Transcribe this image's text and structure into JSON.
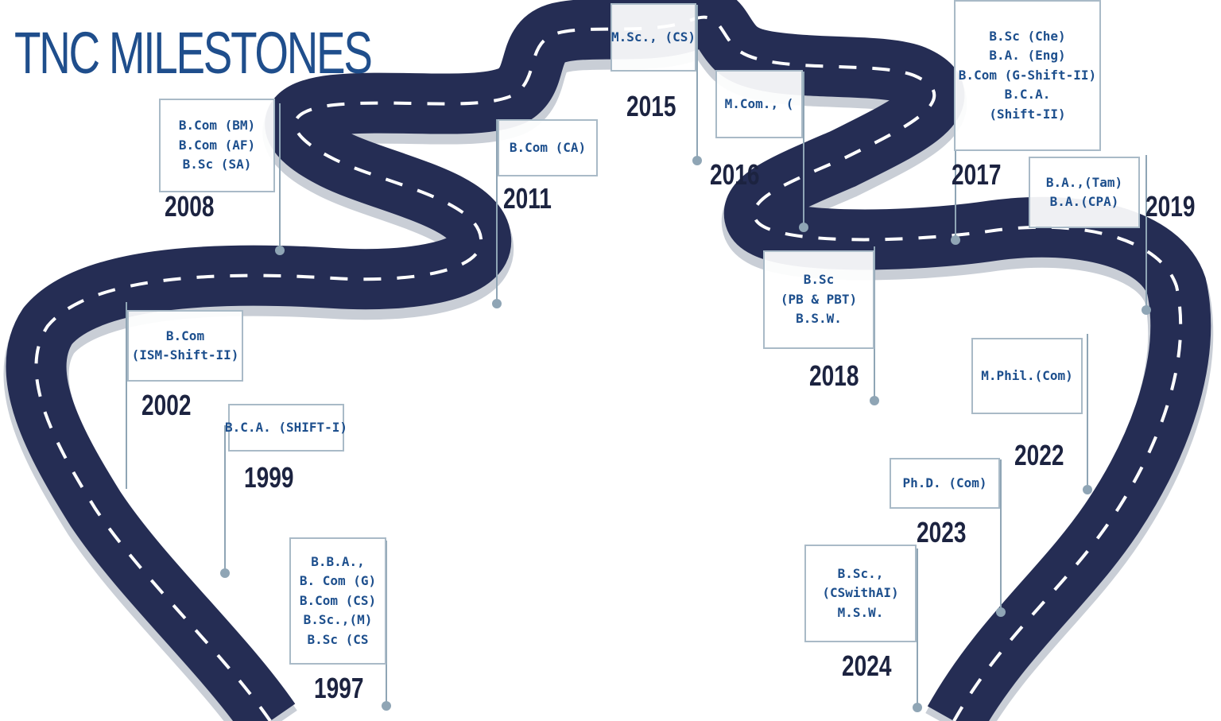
{
  "title": "TNC MILESTONES",
  "colors": {
    "road": "#252d54",
    "road_edge": "#d3d7de",
    "pole": "#8fa5b5",
    "box_text": "#1d4f8d",
    "title": "#1f4e8c",
    "year": "#1c2340"
  },
  "milestones": [
    {
      "year": "1997",
      "courses": [
        "B.B.A.,",
        "B. Com (G)",
        "B.Com (CS)",
        "B.Sc.,(M)",
        "B.Sc (CS"
      ]
    },
    {
      "year": "1999",
      "courses": [
        "B.C.A. (SHIFT-I)"
      ]
    },
    {
      "year": "2002",
      "courses": [
        "B.Com",
        "(ISM-Shift-II)"
      ]
    },
    {
      "year": "2008",
      "courses": [
        "B.Com (BM)",
        "B.Com (AF)",
        "B.Sc (SA)"
      ]
    },
    {
      "year": "2011",
      "courses": [
        "B.Com (CA)"
      ]
    },
    {
      "year": "2015",
      "courses": [
        "M.Sc., (CS)"
      ]
    },
    {
      "year": "2016",
      "courses": [
        "M.Com., ("
      ]
    },
    {
      "year": "2017",
      "courses": [
        "B.Sc (Che)",
        "B.A. (Eng)",
        "B.Com (G-Shift-II)",
        "B.C.A.",
        "(Shift-II)"
      ]
    },
    {
      "year": "2018",
      "courses": [
        "B.Sc",
        "(PB & PBT)",
        "B.S.W."
      ]
    },
    {
      "year": "2019",
      "courses": [
        "B.A.,(Tam)",
        "B.A.(CPA)"
      ]
    },
    {
      "year": "2022",
      "courses": [
        "M.Phil.(Com)"
      ]
    },
    {
      "year": "2023",
      "courses": [
        "Ph.D. (Com)"
      ]
    },
    {
      "year": "2024",
      "courses": [
        "B.Sc.,",
        "(CSwithAI)",
        "M.S.W."
      ]
    }
  ]
}
